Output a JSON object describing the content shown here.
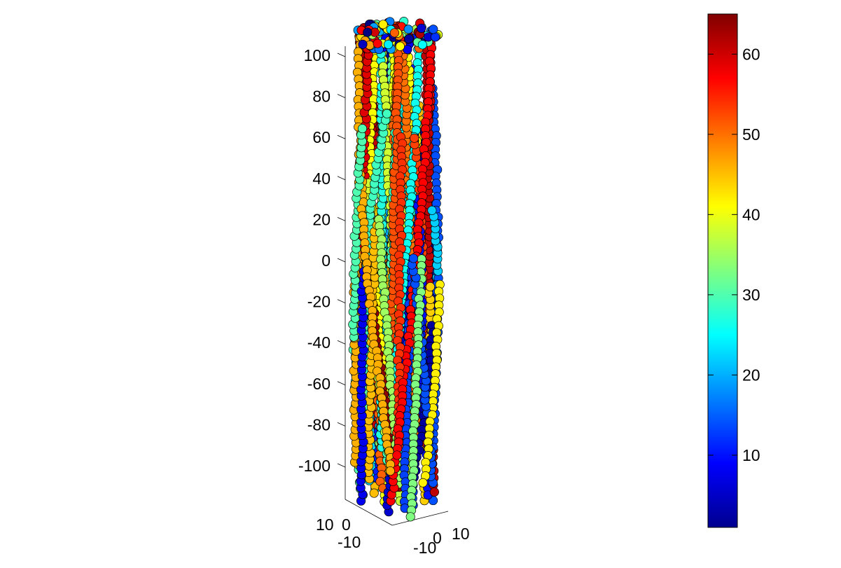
{
  "chart_data": {
    "type": "scatter",
    "dimensions": 3,
    "z_axis": {
      "ticks": [
        100,
        80,
        60,
        40,
        20,
        0,
        -20,
        -40,
        -60,
        -80,
        -100
      ],
      "tick_labels": [
        "100",
        "80",
        "60",
        "40",
        "20",
        "0",
        "-20",
        "-40",
        "-60",
        "-80",
        "-100"
      ],
      "range": [
        -120,
        120
      ]
    },
    "x_axis": {
      "tick_labels": [
        "-10",
        "0",
        "10"
      ],
      "range": [
        -15,
        15
      ]
    },
    "y_axis": {
      "tick_labels": [
        "10",
        "0",
        "-10"
      ],
      "range": [
        -15,
        15
      ]
    },
    "colorbar": {
      "colormap": "jet",
      "range": [
        1,
        65
      ],
      "ticks": [
        10,
        20,
        30,
        40,
        50,
        60
      ],
      "tick_labels": [
        "10",
        "20",
        "30",
        "40",
        "50",
        "60"
      ]
    },
    "series_description": "64 helical strands of points in a column, colored by strand index",
    "marker_edge_color": "#000000",
    "grid": false
  },
  "labels": {
    "x_ticks": [
      "-10",
      "0",
      "10"
    ],
    "y_ticks": [
      "10",
      "0",
      "-10"
    ]
  }
}
